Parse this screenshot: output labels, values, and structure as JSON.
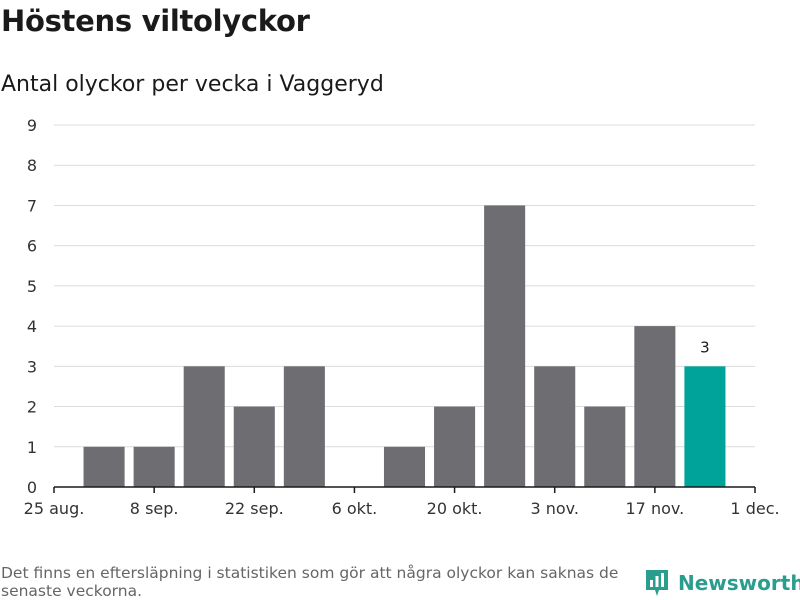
{
  "title": "Höstens viltolyckor",
  "subtitle": "Antal olyckor per vecka i Vaggeryd",
  "footnote": "Det finns en eftersläpning i statistiken som gör att några olyckor kan saknas de senaste veckorna.",
  "brand": "Newsworthy",
  "colors": {
    "bar": "#6e6d72",
    "highlight": "#00a39a",
    "grid": "#dcdcdc",
    "axis": "#1a1a1a",
    "brand": "#2a9d8f"
  },
  "chart_data": {
    "type": "bar",
    "x_ticks": [
      "25 aug.",
      "8 sep.",
      "22 sep.",
      "6 okt.",
      "20 okt.",
      "3 nov.",
      "17 nov.",
      "1 dec."
    ],
    "values": [
      1,
      1,
      3,
      2,
      3,
      0,
      1,
      2,
      7,
      3,
      2,
      4,
      3
    ],
    "highlight_index": 12,
    "highlight_label": "3",
    "ylim": [
      0,
      9
    ],
    "y_ticks": [
      0,
      1,
      2,
      3,
      4,
      5,
      6,
      7,
      8,
      9
    ],
    "grid": true
  }
}
